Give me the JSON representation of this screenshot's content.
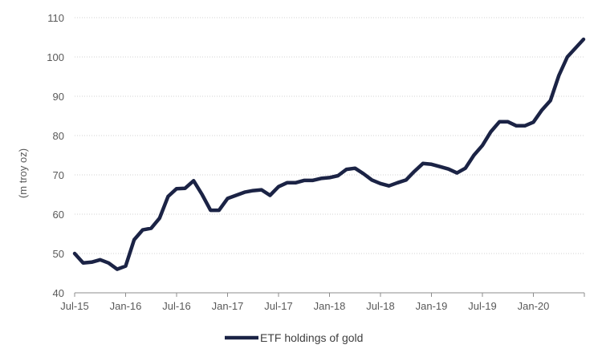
{
  "chart_data": {
    "type": "line",
    "title": "",
    "xlabel": "",
    "ylabel": "(m troy oz)",
    "ylim": [
      40,
      110
    ],
    "yticks": [
      40,
      50,
      60,
      70,
      80,
      90,
      100,
      110
    ],
    "xticks": [
      "Jul-15",
      "Jan-16",
      "Jul-16",
      "Jan-17",
      "Jul-17",
      "Jan-18",
      "Jul-18",
      "Jan-19",
      "Jul-19",
      "Jan-20"
    ],
    "grid": "horizontal",
    "legend_position": "bottom",
    "colors": {
      "series": "#1b2345",
      "grid": "#d0d0d0",
      "axis": "#8c8c8c"
    },
    "series": [
      {
        "name": "ETF holdings of gold",
        "x": [
          "Jul-15",
          "Aug-15",
          "Sep-15",
          "Oct-15",
          "Nov-15",
          "Dec-15",
          "Jan-16",
          "Feb-16",
          "Mar-16",
          "Apr-16",
          "May-16",
          "Jun-16",
          "Jul-16",
          "Aug-16",
          "Sep-16",
          "Oct-16",
          "Nov-16",
          "Dec-16",
          "Jan-17",
          "Feb-17",
          "Mar-17",
          "Apr-17",
          "May-17",
          "Jun-17",
          "Jul-17",
          "Aug-17",
          "Sep-17",
          "Oct-17",
          "Nov-17",
          "Dec-17",
          "Jan-18",
          "Feb-18",
          "Mar-18",
          "Apr-18",
          "May-18",
          "Jun-18",
          "Jul-18",
          "Aug-18",
          "Sep-18",
          "Oct-18",
          "Nov-18",
          "Dec-18",
          "Jan-19",
          "Feb-19",
          "Mar-19",
          "Apr-19",
          "May-19",
          "Jun-19",
          "Jul-19",
          "Aug-19",
          "Sep-19",
          "Oct-19",
          "Nov-19",
          "Dec-19",
          "Jan-20",
          "Feb-20",
          "Mar-20",
          "Apr-20",
          "May-20",
          "Jun-20"
        ],
        "values": [
          50.0,
          47.6,
          47.8,
          48.4,
          47.6,
          46.0,
          46.8,
          53.5,
          56.0,
          56.4,
          59.0,
          64.5,
          66.5,
          66.6,
          68.5,
          65.0,
          61.0,
          61.0,
          64.0,
          64.8,
          65.6,
          66.0,
          66.2,
          64.8,
          67.0,
          68.0,
          68.0,
          68.6,
          68.6,
          69.1,
          69.3,
          69.8,
          71.4,
          71.7,
          70.3,
          68.7,
          67.8,
          67.2,
          68.0,
          68.7,
          70.9,
          72.9,
          72.7,
          72.1,
          71.5,
          70.5,
          71.7,
          75.0,
          77.5,
          81.0,
          83.5,
          83.5,
          82.5,
          82.5,
          83.4,
          86.5,
          88.9,
          95.3,
          100.0,
          104.5
        ]
      }
    ]
  }
}
